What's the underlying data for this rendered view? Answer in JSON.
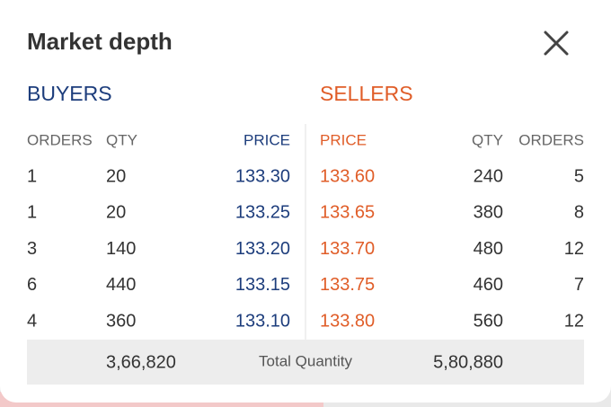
{
  "header": {
    "title": "Market depth"
  },
  "buyers": {
    "title": "BUYERS",
    "columns": [
      "ORDERS",
      "QTY",
      "PRICE"
    ],
    "rows": [
      [
        "1",
        "20",
        "133.30"
      ],
      [
        "1",
        "20",
        "133.25"
      ],
      [
        "3",
        "140",
        "133.20"
      ],
      [
        "6",
        "440",
        "133.15"
      ],
      [
        "4",
        "360",
        "133.10"
      ]
    ]
  },
  "sellers": {
    "title": "SELLERS",
    "columns": [
      "PRICE",
      "QTY",
      "ORDERS"
    ],
    "rows": [
      [
        "133.60",
        "240",
        "5"
      ],
      [
        "133.65",
        "380",
        "8"
      ],
      [
        "133.70",
        "480",
        "12"
      ],
      [
        "133.75",
        "460",
        "7"
      ],
      [
        "133.80",
        "560",
        "12"
      ]
    ]
  },
  "footer": {
    "buyers_total": "3,66,820",
    "label": "Total Quantity",
    "sellers_total": "5,80,880"
  }
}
